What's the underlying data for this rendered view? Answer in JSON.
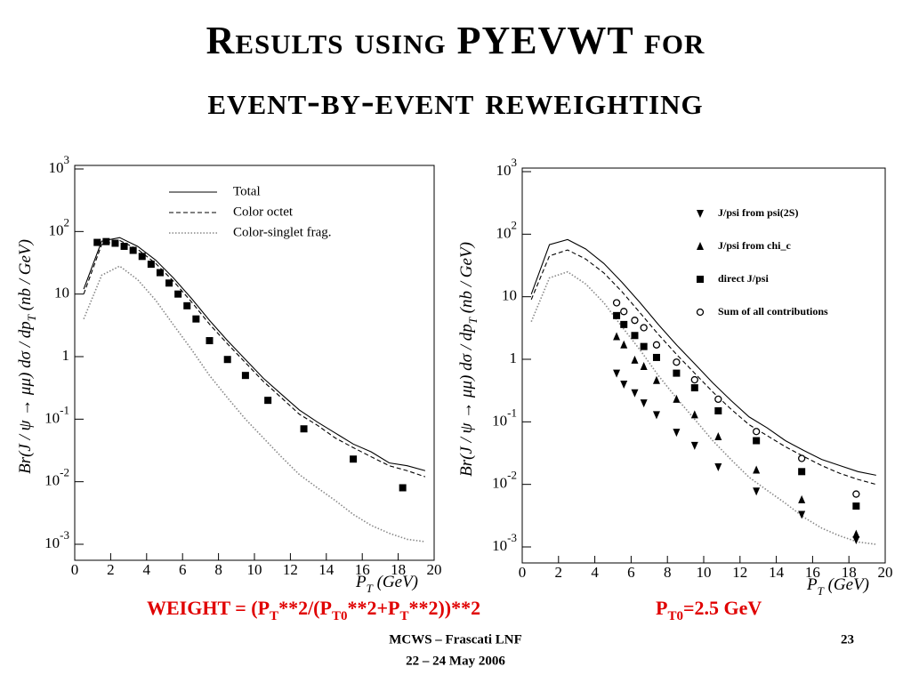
{
  "title": [
    "Results using PYEVWT for",
    "event-by-event reweighting"
  ],
  "chart_data": [
    {
      "type": "line",
      "log_y": true,
      "xlim": [
        0,
        20
      ],
      "ylim": [
        0.001,
        1000
      ],
      "xticks": [
        0,
        2,
        4,
        6,
        8,
        10,
        12,
        14,
        16,
        18,
        20
      ],
      "yticks": [
        {
          "value": 0.001,
          "label": "10^-3"
        },
        {
          "value": 0.01,
          "label": "10^-2"
        },
        {
          "value": 0.1,
          "label": "10^-1"
        },
        1,
        10,
        {
          "value": 100,
          "label": "10^2"
        },
        {
          "value": 1000,
          "label": "10^3"
        }
      ],
      "xlabel": [
        "P",
        "T",
        " (GeV)"
      ],
      "ylabel": [
        "Br(J / ψ → μμ) dσ / dp",
        "T",
        " (nb / GeV)"
      ],
      "legend": "top-right",
      "series": [
        {
          "name": "Total",
          "color": "#000000",
          "style": "solid",
          "x": [
            0.5,
            1.5,
            2.5,
            3.5,
            4.5,
            5.5,
            6.5,
            7.5,
            8.5,
            9.5,
            10.5,
            11.5,
            12.5,
            13.5,
            14.5,
            15.5,
            16.5,
            17.5,
            18.5,
            19.5
          ],
          "values": [
            12,
            70,
            80,
            58,
            35,
            18,
            8.5,
            3.8,
            1.8,
            0.9,
            0.45,
            0.25,
            0.14,
            0.09,
            0.06,
            0.04,
            0.03,
            0.02,
            0.018,
            0.015
          ]
        },
        {
          "name": "Color octet",
          "color": "#000000",
          "style": "dashed",
          "x": [
            0.5,
            1.5,
            2.5,
            3.5,
            4.5,
            5.5,
            6.5,
            7.5,
            8.5,
            9.5,
            10.5,
            11.5,
            12.5,
            13.5,
            14.5,
            15.5,
            16.5,
            17.5,
            18.5,
            19.5
          ],
          "values": [
            10,
            62,
            72,
            52,
            31,
            16,
            7.5,
            3.3,
            1.6,
            0.8,
            0.4,
            0.22,
            0.12,
            0.08,
            0.05,
            0.035,
            0.025,
            0.018,
            0.015,
            0.012
          ]
        },
        {
          "name": "Color-singlet frag.",
          "color": "#888888",
          "style": "dotted",
          "x": [
            0.5,
            1.5,
            2.5,
            3.5,
            4.5,
            5.5,
            6.5,
            7.5,
            8.5,
            9.5,
            10.5,
            11.5,
            12.5,
            13.5,
            14.5,
            15.5,
            16.5,
            17.5,
            18.5,
            19.5
          ],
          "values": [
            4,
            20,
            28,
            17,
            8,
            3.2,
            1.3,
            0.5,
            0.22,
            0.1,
            0.05,
            0.025,
            0.013,
            0.008,
            0.005,
            0.003,
            0.002,
            0.0015,
            0.0012,
            0.0011
          ]
        },
        {
          "color": "#000000",
          "marker": "square",
          "x": [
            1.25,
            1.75,
            2.25,
            2.75,
            3.25,
            3.75,
            4.25,
            4.75,
            5.25,
            5.75,
            6.25,
            6.75,
            7.5,
            8.5,
            9.5,
            10.75,
            12.75,
            15.5,
            18.25
          ],
          "values": [
            67,
            69,
            65,
            58,
            50,
            40,
            30,
            22,
            15,
            10,
            6.5,
            4,
            1.8,
            0.9,
            0.5,
            0.2,
            0.07,
            0.023,
            0.008
          ]
        }
      ]
    },
    {
      "type": "line",
      "log_y": true,
      "xlim": [
        0,
        20
      ],
      "ylim": [
        0.001,
        1000
      ],
      "xticks": [
        0,
        2,
        4,
        6,
        8,
        10,
        12,
        14,
        16,
        18,
        20
      ],
      "yticks": [
        {
          "value": 0.001,
          "label": "10^-3"
        },
        {
          "value": 0.01,
          "label": "10^-2"
        },
        {
          "value": 0.1,
          "label": "10^-1"
        },
        1,
        10,
        {
          "value": 100,
          "label": "10^2"
        },
        {
          "value": 1000,
          "label": "10^3"
        }
      ],
      "xlabel": [
        "P",
        "T",
        " (GeV)"
      ],
      "ylabel": [
        "Br(J / ψ → μμ) dσ / dp",
        "T",
        " (nb / GeV)"
      ],
      "legend": "top-right",
      "series": [
        {
          "color": "#000000",
          "style": "solid",
          "x": [
            0.5,
            1.5,
            2.5,
            3.5,
            4.5,
            5.5,
            6.5,
            7.5,
            8.5,
            9.5,
            10.5,
            11.5,
            12.5,
            13.5,
            14.5,
            15.5,
            16.5,
            17.5,
            18.5,
            19.5
          ],
          "values": [
            11,
            68,
            82,
            58,
            34,
            17,
            8,
            3.6,
            1.7,
            0.85,
            0.42,
            0.22,
            0.12,
            0.08,
            0.05,
            0.035,
            0.025,
            0.02,
            0.016,
            0.014
          ]
        },
        {
          "color": "#000000",
          "style": "dashed",
          "x": [
            0.5,
            1.5,
            2.5,
            3.5,
            4.5,
            5.5,
            6.5,
            7.5,
            8.5,
            9.5,
            10.5,
            11.5,
            12.5,
            13.5,
            14.5,
            15.5,
            16.5,
            17.5,
            18.5,
            19.5
          ],
          "values": [
            9,
            45,
            56,
            40,
            24,
            12,
            5.5,
            2.5,
            1.2,
            0.6,
            0.3,
            0.16,
            0.09,
            0.06,
            0.04,
            0.028,
            0.02,
            0.015,
            0.012,
            0.01
          ]
        },
        {
          "color": "#888888",
          "style": "dotted",
          "x": [
            0.5,
            1.5,
            2.5,
            3.5,
            4.5,
            5.5,
            6.5,
            7.5,
            8.5,
            9.5,
            10.5,
            11.5,
            12.5,
            13.5,
            14.5,
            15.5,
            16.5,
            17.5,
            18.5,
            19.5
          ],
          "values": [
            4,
            20,
            25,
            16,
            8,
            3.3,
            1.4,
            0.55,
            0.24,
            0.11,
            0.05,
            0.025,
            0.013,
            0.008,
            0.005,
            0.003,
            0.002,
            0.0015,
            0.0012,
            0.0011
          ]
        },
        {
          "name": "J/psi from psi(2S)",
          "color": "#000000",
          "marker": "tri-down",
          "x": [
            5.2,
            5.6,
            6.2,
            6.7,
            7.4,
            8.5,
            9.5,
            10.8,
            12.9,
            15.4,
            18.4
          ],
          "values": [
            0.6,
            0.4,
            0.29,
            0.2,
            0.13,
            0.068,
            0.042,
            0.019,
            0.0078,
            0.0033,
            0.0013
          ]
        },
        {
          "name": "J/psi from chi_c",
          "color": "#000000",
          "marker": "tri-up",
          "x": [
            5.2,
            5.6,
            6.2,
            6.7,
            7.4,
            8.5,
            9.5,
            10.8,
            12.9,
            15.4,
            18.4
          ],
          "values": [
            2.3,
            1.7,
            0.97,
            0.77,
            0.46,
            0.23,
            0.13,
            0.058,
            0.017,
            0.0057,
            0.0016
          ]
        },
        {
          "name": "direct J/psi",
          "color": "#000000",
          "marker": "square",
          "x": [
            5.2,
            5.6,
            6.2,
            6.7,
            7.4,
            8.5,
            9.5,
            10.8,
            12.9,
            15.4,
            18.4
          ],
          "values": [
            5,
            3.6,
            2.4,
            1.6,
            1.07,
            0.6,
            0.35,
            0.15,
            0.05,
            0.016,
            0.0045
          ]
        },
        {
          "name": "Sum of all contributions",
          "color": "#000000",
          "marker": "circle",
          "x": [
            5.2,
            5.6,
            6.2,
            6.7,
            7.4,
            8.5,
            9.5,
            10.8,
            12.9,
            15.4,
            18.4
          ],
          "values": [
            8,
            5.8,
            4.2,
            3.2,
            1.7,
            0.9,
            0.47,
            0.23,
            0.07,
            0.026,
            0.007
          ]
        }
      ]
    }
  ],
  "formula": [
    "WEIGHT = (P",
    "T",
    "**2/(P",
    "T0",
    "**2+P",
    "T",
    "**2))**2"
  ],
  "parameter": [
    "P",
    "T0",
    "=2.5 GeV"
  ],
  "footer": {
    "venue": "MCWS – Frascati LNF",
    "date": "22 – 24 May 2006",
    "page": "23"
  }
}
